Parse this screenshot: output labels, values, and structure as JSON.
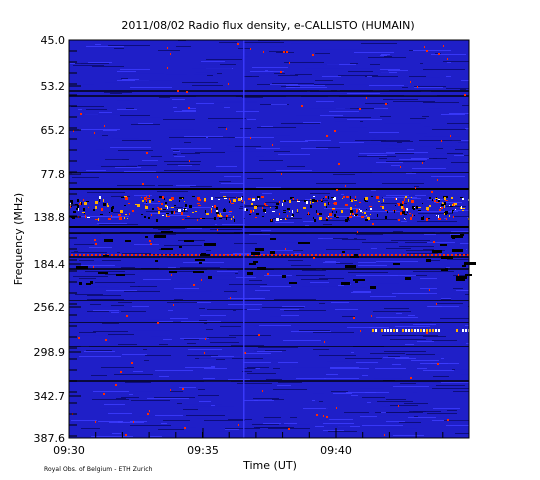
{
  "chart_data": {
    "type": "heatmap",
    "title": "2011/08/02  Radio flux density, e-CALLISTO (HUMAIN)",
    "xlabel": "Time (UT)",
    "ylabel": "Frequency (MHz)",
    "x_ticks": [
      "09:30",
      "09:35",
      "09:40"
    ],
    "y_ticks": [
      "45.0",
      "53.2",
      "65.2",
      "77.8",
      "138.8",
      "184.4",
      "256.2",
      "298.9",
      "342.7",
      "387.6"
    ],
    "x_range": [
      "09:30",
      "09:45"
    ],
    "y_range": [
      45.0,
      387.6
    ],
    "colormap": [
      "#000000",
      "#0a0a6e",
      "#1f1fc8",
      "#3c3cff",
      "#ff2a00",
      "#ffb000",
      "#ffffff"
    ],
    "background_color": "#1f1fc8",
    "features": [
      {
        "label": "bright burst band",
        "freq_range": [
          120,
          150
        ],
        "time_range": [
          "09:30",
          "09:45"
        ]
      },
      {
        "label": "intermittent emission",
        "freq_range": [
          280,
          290
        ],
        "time_range": [
          "09:41",
          "09:45"
        ]
      }
    ]
  },
  "credit": "Royal Obs. of Belgium - ETH Zurich"
}
